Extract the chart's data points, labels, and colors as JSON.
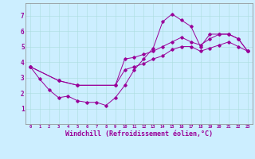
{
  "title": "",
  "xlabel": "Windchill (Refroidissement éolien,°C)",
  "ylabel": "",
  "bg_color": "#cceeff",
  "line_color": "#990099",
  "xlim": [
    -0.5,
    23.5
  ],
  "ylim": [
    0,
    7.8
  ],
  "xticks": [
    0,
    1,
    2,
    3,
    4,
    5,
    6,
    7,
    8,
    9,
    10,
    11,
    12,
    13,
    14,
    15,
    16,
    17,
    18,
    19,
    20,
    21,
    22,
    23
  ],
  "yticks": [
    1,
    2,
    3,
    4,
    5,
    6,
    7
  ],
  "line1_x": [
    0,
    1,
    2,
    3,
    4,
    5,
    6,
    7,
    8,
    9,
    10,
    11,
    12,
    13,
    14,
    15,
    16,
    17,
    18,
    19,
    20,
    21,
    22,
    23
  ],
  "line1_y": [
    3.7,
    2.9,
    2.2,
    1.7,
    1.8,
    1.5,
    1.4,
    1.4,
    1.2,
    1.7,
    2.5,
    3.5,
    4.2,
    4.9,
    6.6,
    7.1,
    6.7,
    6.3,
    5.0,
    5.8,
    5.8,
    5.8,
    5.5,
    4.7
  ],
  "line2_x": [
    0,
    3,
    5,
    9,
    10,
    11,
    12,
    13,
    14,
    15,
    16,
    17,
    18,
    19,
    20,
    21,
    22,
    23
  ],
  "line2_y": [
    3.7,
    2.8,
    2.5,
    2.5,
    4.2,
    4.3,
    4.5,
    4.7,
    5.0,
    5.3,
    5.6,
    5.3,
    5.1,
    5.5,
    5.8,
    5.8,
    5.5,
    4.7
  ],
  "line3_x": [
    0,
    3,
    5,
    9,
    10,
    11,
    12,
    13,
    14,
    15,
    16,
    17,
    18,
    19,
    20,
    21,
    22,
    23
  ],
  "line3_y": [
    3.7,
    2.8,
    2.5,
    2.5,
    3.5,
    3.7,
    3.9,
    4.2,
    4.4,
    4.8,
    5.0,
    5.0,
    4.7,
    4.9,
    5.1,
    5.3,
    5.0,
    4.7
  ],
  "grid_color": "#aadddd",
  "tick_fontsize": 5,
  "xlabel_fontsize": 6
}
